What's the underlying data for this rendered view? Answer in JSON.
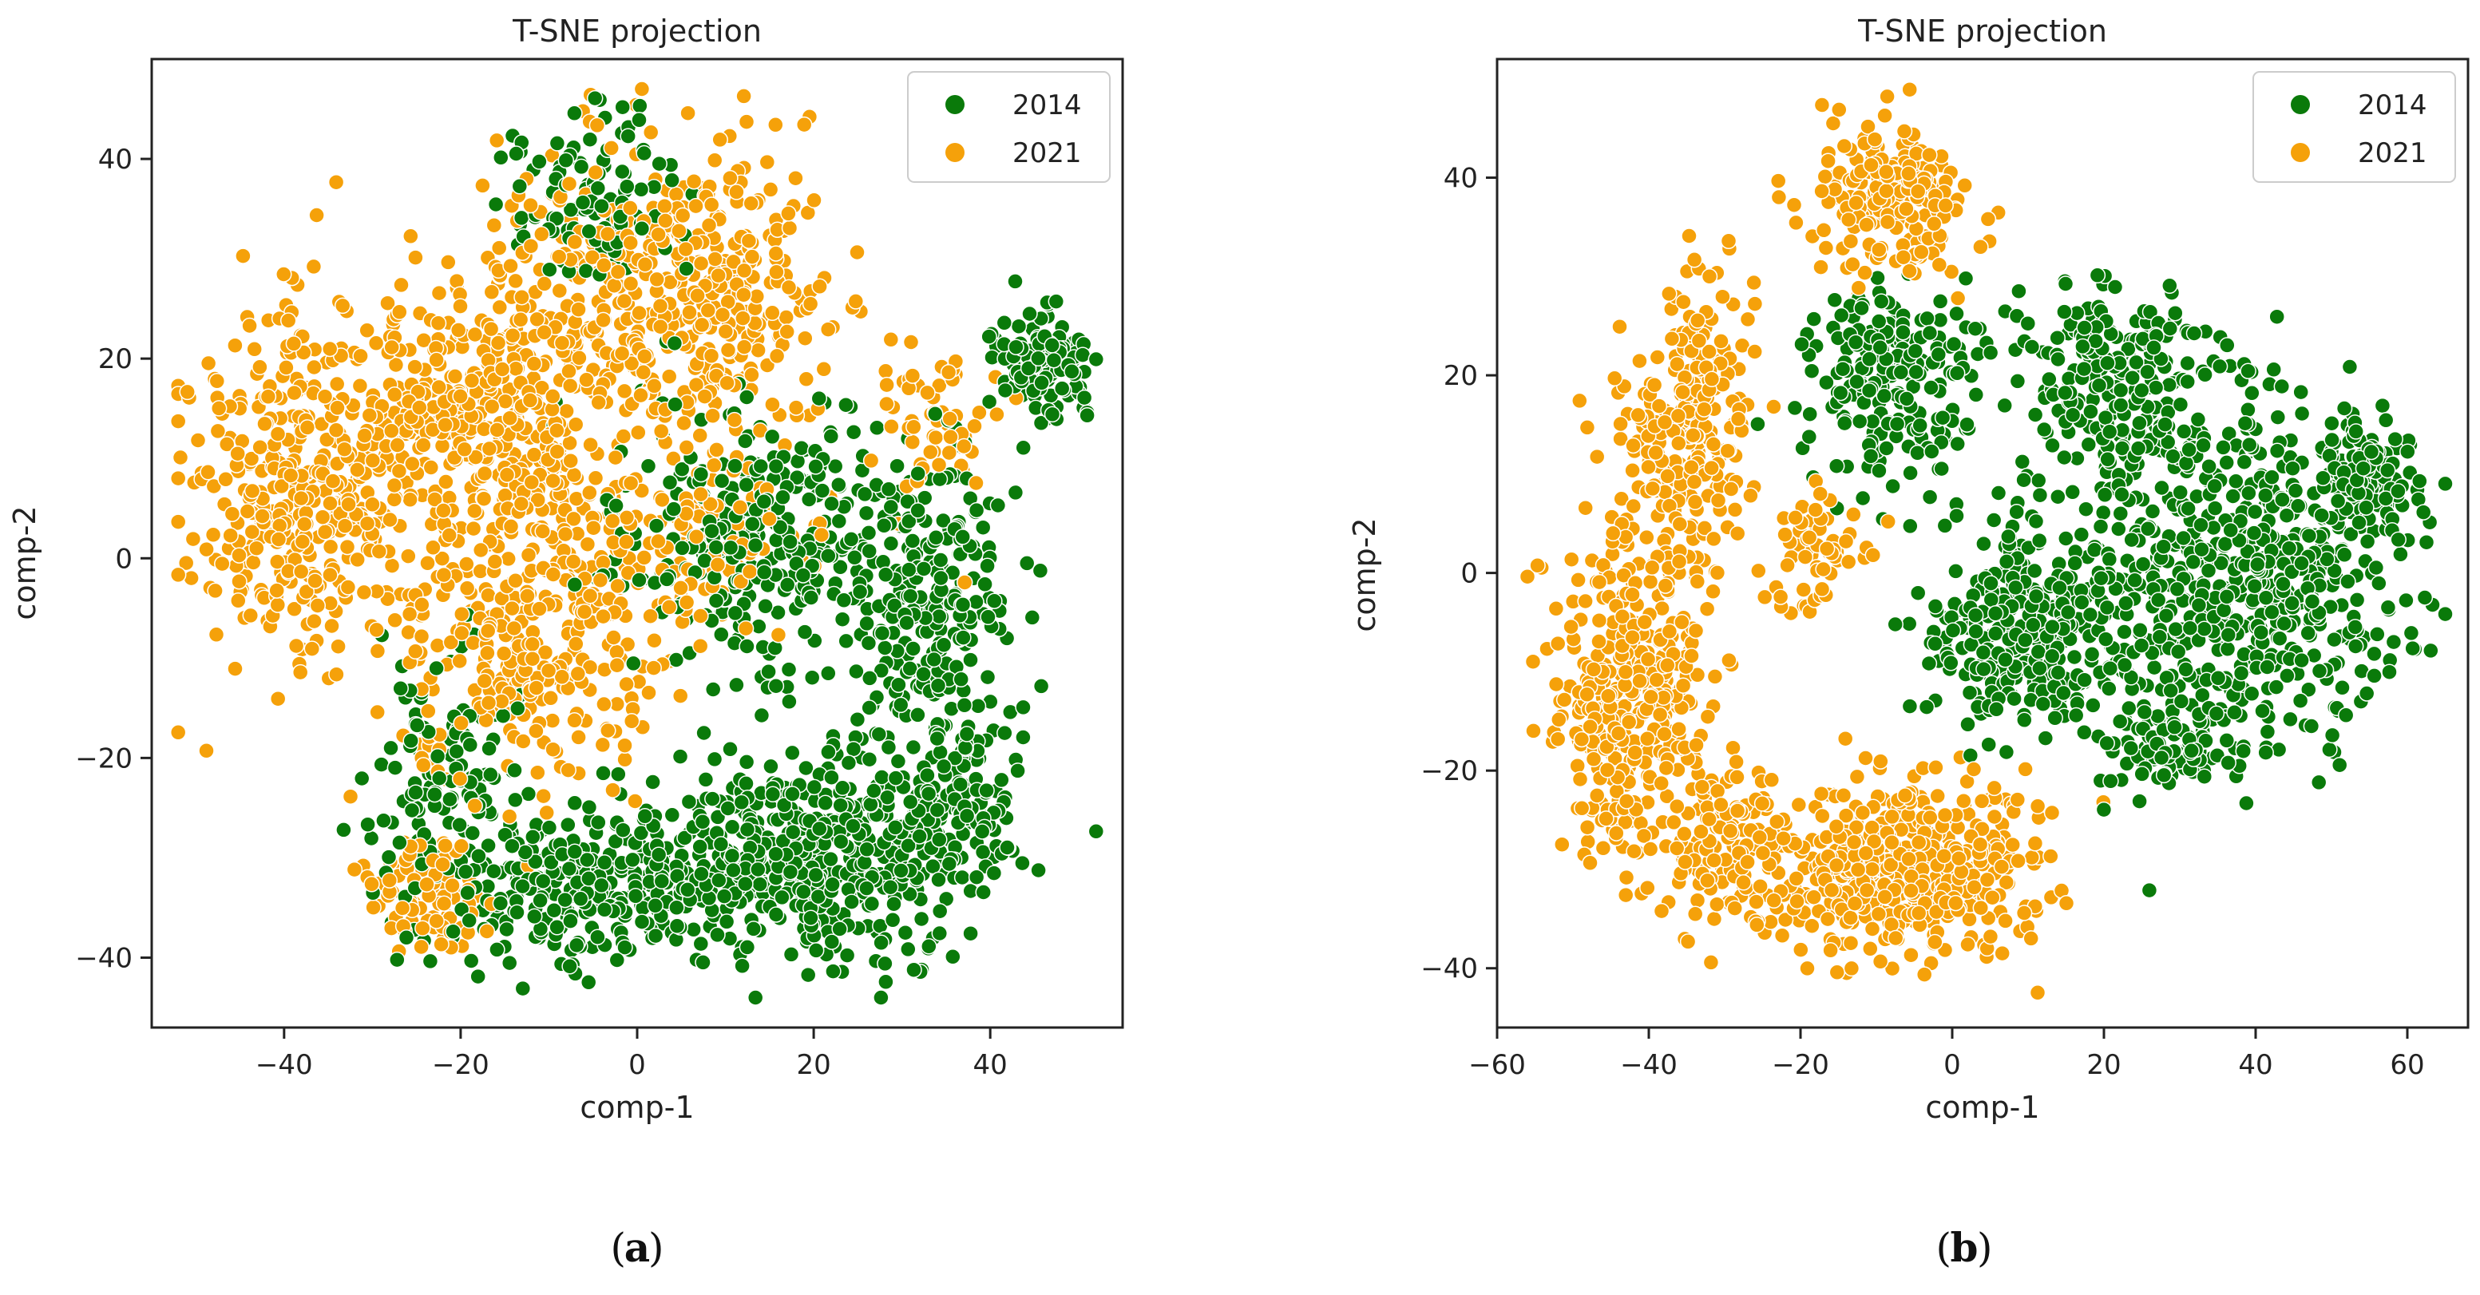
{
  "chart_data": [
    {
      "type": "scatter",
      "panel_label": "a",
      "title": "T-SNE projection",
      "xlabel": "comp-1",
      "ylabel": "comp-2",
      "xlim": [
        -55,
        55
      ],
      "ylim": [
        -47,
        50
      ],
      "xticks": [
        -40,
        -20,
        0,
        20,
        40
      ],
      "yticks": [
        -40,
        -20,
        0,
        20,
        40
      ],
      "legend_position": "top-right",
      "series": [
        {
          "name": "2014",
          "color": "#0a7a0a",
          "clusters": [
            {
              "cx": 20,
              "cy": -30,
              "rx": 18,
              "ry": 9,
              "n": 520,
              "seed": 11
            },
            {
              "cx": -8,
              "cy": -33,
              "rx": 14,
              "ry": 7,
              "n": 260,
              "seed": 12
            },
            {
              "cx": 33,
              "cy": -5,
              "rx": 9,
              "ry": 14,
              "n": 280,
              "seed": 13
            },
            {
              "cx": 46,
              "cy": 20,
              "rx": 5,
              "ry": 5,
              "n": 120,
              "seed": 14
            },
            {
              "cx": 12,
              "cy": 2,
              "rx": 14,
              "ry": 12,
              "n": 280,
              "seed": 15
            },
            {
              "cx": -5,
              "cy": 36,
              "rx": 9,
              "ry": 8,
              "n": 110,
              "seed": 16
            },
            {
              "cx": -22,
              "cy": -22,
              "rx": 8,
              "ry": 10,
              "n": 110,
              "seed": 17
            },
            {
              "cx": 36,
              "cy": -25,
              "rx": 6,
              "ry": 7,
              "n": 120,
              "seed": 18
            }
          ]
        },
        {
          "name": "2021",
          "color": "#f5a10a",
          "clusters": [
            {
              "cx": -38,
              "cy": 7,
              "rx": 11,
              "ry": 17,
              "n": 380,
              "seed": 21
            },
            {
              "cx": -18,
              "cy": 14,
              "rx": 14,
              "ry": 13,
              "n": 420,
              "seed": 22
            },
            {
              "cx": 4,
              "cy": 26,
              "rx": 16,
              "ry": 14,
              "n": 460,
              "seed": 23
            },
            {
              "cx": -12,
              "cy": -8,
              "rx": 14,
              "ry": 14,
              "n": 330,
              "seed": 24
            },
            {
              "cx": -24,
              "cy": -34,
              "rx": 6,
              "ry": 5,
              "n": 90,
              "seed": 25
            },
            {
              "cx": 8,
              "cy": 3,
              "rx": 12,
              "ry": 8,
              "n": 120,
              "seed": 26
            },
            {
              "cx": 34,
              "cy": 14,
              "rx": 6,
              "ry": 8,
              "n": 60,
              "seed": 27
            }
          ]
        }
      ]
    },
    {
      "type": "scatter",
      "panel_label": "b",
      "title": "T-SNE projection",
      "xlabel": "comp-1",
      "ylabel": "comp-2",
      "xlim": [
        -60,
        68
      ],
      "ylim": [
        -46,
        52
      ],
      "xticks": [
        -60,
        -40,
        -20,
        0,
        20,
        40,
        60
      ],
      "yticks": [
        -40,
        -20,
        0,
        20,
        40
      ],
      "legend_position": "top-right",
      "series": [
        {
          "name": "2014",
          "color": "#0a7a0a",
          "clusters": [
            {
              "cx": 38,
              "cy": 0,
              "rx": 20,
              "ry": 16,
              "n": 620,
              "seed": 31
            },
            {
              "cx": 10,
              "cy": -5,
              "rx": 12,
              "ry": 10,
              "n": 320,
              "seed": 32
            },
            {
              "cx": -8,
              "cy": 20,
              "rx": 11,
              "ry": 9,
              "n": 220,
              "seed": 33
            },
            {
              "cx": 22,
              "cy": 20,
              "rx": 12,
              "ry": 9,
              "n": 220,
              "seed": 34
            },
            {
              "cx": 55,
              "cy": 10,
              "rx": 6,
              "ry": 5,
              "n": 120,
              "seed": 35
            },
            {
              "cx": 30,
              "cy": -18,
              "rx": 8,
              "ry": 4,
              "n": 90,
              "seed": 36
            }
          ]
        },
        {
          "name": "2021",
          "color": "#f5a10a",
          "clusters": [
            {
              "cx": -7,
              "cy": -30,
              "rx": 16,
              "ry": 8,
              "n": 520,
              "seed": 41
            },
            {
              "cx": -42,
              "cy": -12,
              "rx": 9,
              "ry": 16,
              "n": 420,
              "seed": 42
            },
            {
              "cx": -35,
              "cy": 15,
              "rx": 8,
              "ry": 13,
              "n": 260,
              "seed": 43
            },
            {
              "cx": -8,
              "cy": 38,
              "rx": 9,
              "ry": 7,
              "n": 230,
              "seed": 44
            },
            {
              "cx": -30,
              "cy": -28,
              "rx": 6,
              "ry": 8,
              "n": 120,
              "seed": 45
            },
            {
              "cx": -18,
              "cy": 2,
              "rx": 6,
              "ry": 6,
              "n": 60,
              "seed": 46
            }
          ]
        }
      ]
    }
  ]
}
